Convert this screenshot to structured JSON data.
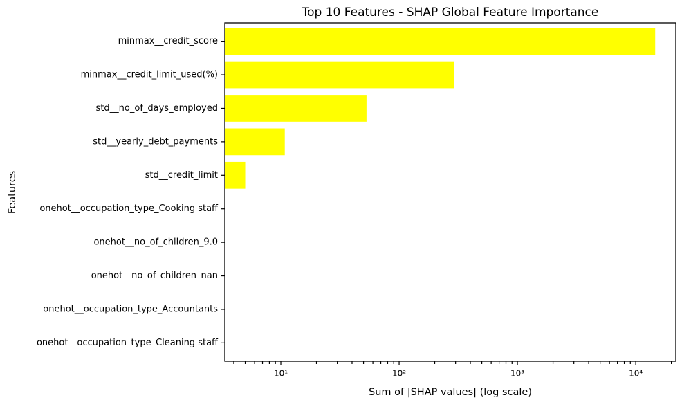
{
  "chart_data": {
    "type": "barh",
    "title": "Top 10 Features - SHAP Global Feature Importance",
    "xlabel": "Sum of |SHAP values| (log scale)",
    "ylabel": "Features",
    "categories": [
      "minmax__credit_score",
      "minmax__credit_limit_used(%)",
      "std__no_of_days_employed",
      "std__yearly_debt_payments",
      "std__credit_limit",
      "onehot__occupation_type_Cooking staff",
      "onehot__no_of_children_9.0",
      "onehot__no_of_children_nan",
      "onehot__occupation_type_Accountants",
      "onehot__occupation_type_Cleaning staff"
    ],
    "values": [
      14600,
      290,
      53,
      10.8,
      5.0,
      0,
      0,
      0,
      0,
      0
    ],
    "color": "#ffff00",
    "xscale": "log",
    "xlim": [
      3.36,
      21800
    ],
    "xticks": [
      {
        "value": 10,
        "label": "10¹"
      },
      {
        "value": 100,
        "label": "10²"
      },
      {
        "value": 1000,
        "label": "10³"
      },
      {
        "value": 10000,
        "label": "10⁴"
      }
    ],
    "xminorticks": [
      4,
      5,
      6,
      7,
      8,
      9,
      20,
      30,
      40,
      50,
      60,
      70,
      80,
      90,
      200,
      300,
      400,
      500,
      600,
      700,
      800,
      900,
      2000,
      3000,
      4000,
      5000,
      6000,
      7000,
      8000,
      9000,
      20000
    ]
  }
}
